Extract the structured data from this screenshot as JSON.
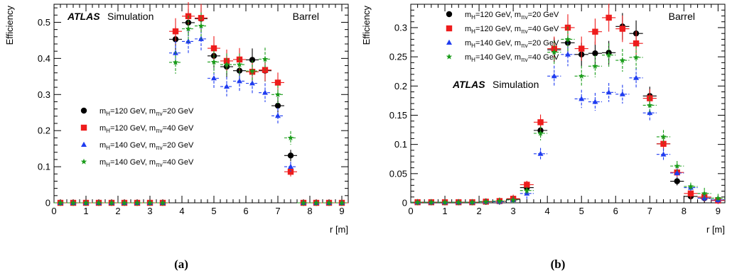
{
  "chart_data": [
    {
      "type": "scatter",
      "caption": "(a)",
      "ylabel": "Efficiency",
      "xlabel": "r [m]",
      "region_label": "Barrel",
      "atlas_label": "ATLAS",
      "atlas_sub": "Simulation",
      "xlim": [
        0,
        9.2
      ],
      "ylim": [
        0,
        0.55
      ],
      "xticks": [
        0,
        1,
        2,
        3,
        4,
        5,
        6,
        7,
        8,
        9
      ],
      "yticks": [
        0,
        0.1,
        0.2,
        0.3,
        0.4,
        0.5
      ],
      "ytick_labels": [
        "0",
        "0.1",
        "0.2",
        "0.3",
        "0.4",
        "0.5"
      ],
      "legend_position": "lower-left",
      "x": [
        0.2,
        0.6,
        1.0,
        1.4,
        1.8,
        2.2,
        2.6,
        3.0,
        3.4,
        3.8,
        4.2,
        4.6,
        5.0,
        5.4,
        5.8,
        6.2,
        6.6,
        7.0,
        7.4,
        7.8,
        8.2,
        8.6,
        9.0
      ],
      "series": [
        {
          "name": "m_H=120 GeV, m_πv=20 GeV",
          "marker": "circle",
          "color": "#000000",
          "values": [
            0,
            0,
            0,
            0,
            0,
            0,
            0,
            0,
            0,
            0.453,
            0.499,
            0.51,
            0.407,
            0.377,
            0.366,
            0.396,
            0.366,
            0.269,
            0.131,
            0,
            0,
            0,
            0
          ]
        },
        {
          "name": "m_H=120 GeV, m_πv=40 GeV",
          "marker": "square",
          "color": "#ee1c1c",
          "values": [
            0,
            0,
            0,
            0,
            0,
            0,
            0,
            0,
            0,
            0.475,
            0.517,
            0.512,
            0.428,
            0.393,
            0.397,
            0.363,
            0.368,
            0.333,
            0.086,
            0,
            0,
            0,
            0
          ]
        },
        {
          "name": "m_H=140 GeV, m_πv=20 GeV",
          "marker": "triangle",
          "color": "#1f3cf0",
          "values": [
            0,
            0,
            0,
            0,
            0,
            0,
            0,
            0,
            0,
            0.415,
            0.447,
            0.454,
            0.345,
            0.322,
            0.337,
            0.331,
            0.305,
            0.241,
            0.1,
            0,
            0,
            0,
            0
          ]
        },
        {
          "name": "m_H=140 GeV, m_πv=40 GeV",
          "marker": "star",
          "color": "#1a9c1a",
          "values": [
            0,
            0,
            0,
            0,
            0,
            0,
            0,
            0,
            0,
            0.389,
            0.482,
            0.49,
            0.39,
            0.383,
            0.383,
            0.365,
            0.398,
            0.3,
            0.18,
            0,
            0,
            0,
            0
          ]
        }
      ]
    },
    {
      "type": "scatter",
      "caption": "(b)",
      "ylabel": "Efficiency",
      "xlabel": "r [m]",
      "region_label": "Barrel",
      "atlas_label": "ATLAS",
      "atlas_sub": "Simulation",
      "xlim": [
        0,
        9.2
      ],
      "ylim": [
        0,
        0.34
      ],
      "xticks": [
        0,
        1,
        2,
        3,
        4,
        5,
        6,
        7,
        8,
        9
      ],
      "yticks": [
        0,
        0.05,
        0.1,
        0.15,
        0.2,
        0.25,
        0.3
      ],
      "ytick_labels": [
        "0",
        "0.05",
        "0.1",
        "0.15",
        "0.2",
        "0.25",
        "0.3"
      ],
      "legend_position": "top-left",
      "x": [
        0.2,
        0.6,
        1.0,
        1.4,
        1.8,
        2.2,
        2.6,
        3.0,
        3.4,
        3.8,
        4.2,
        4.6,
        5.0,
        5.4,
        5.8,
        6.2,
        6.6,
        7.0,
        7.4,
        7.8,
        8.2,
        8.6,
        9.0
      ],
      "series": [
        {
          "name": "m_H=120 GeV, m_πv=20 GeV",
          "marker": "circle",
          "color": "#000000",
          "values": [
            0.001,
            0.001,
            0.001,
            0.001,
            0.001,
            0.002,
            0.003,
            0.006,
            0.026,
            0.124,
            0.262,
            0.274,
            0.254,
            0.256,
            0.257,
            0.302,
            0.29,
            0.183,
            0.101,
            0.037,
            0.011,
            0.008,
            0.005
          ]
        },
        {
          "name": "m_H=120 GeV, m_πv=40 GeV",
          "marker": "square",
          "color": "#ee1c1c",
          "values": [
            0.001,
            0.001,
            0.001,
            0.001,
            0.001,
            0.002,
            0.003,
            0.007,
            0.031,
            0.138,
            0.264,
            0.3,
            0.264,
            0.293,
            0.317,
            0.298,
            0.273,
            0.179,
            0.101,
            0.052,
            0.016,
            0.01,
            0.004
          ]
        },
        {
          "name": "m_H=140 GeV, m_πv=20 GeV",
          "marker": "triangle",
          "color": "#1f3cf0",
          "values": [
            0.001,
            0.001,
            0.001,
            0.001,
            0.001,
            0.002,
            0.002,
            0.005,
            0.016,
            0.084,
            0.217,
            0.254,
            0.178,
            0.173,
            0.189,
            0.186,
            0.214,
            0.154,
            0.083,
            0.051,
            0.026,
            0.008,
            0.005
          ]
        },
        {
          "name": "m_H=140 GeV, m_πv=40 GeV",
          "marker": "star",
          "color": "#1a9c1a",
          "values": [
            0.001,
            0.001,
            0.001,
            0.001,
            0.001,
            0.002,
            0.003,
            0.005,
            0.021,
            0.119,
            0.258,
            0.28,
            0.217,
            0.234,
            0.253,
            0.244,
            0.249,
            0.167,
            0.113,
            0.063,
            0.028,
            0.016,
            0.008
          ]
        }
      ]
    }
  ]
}
